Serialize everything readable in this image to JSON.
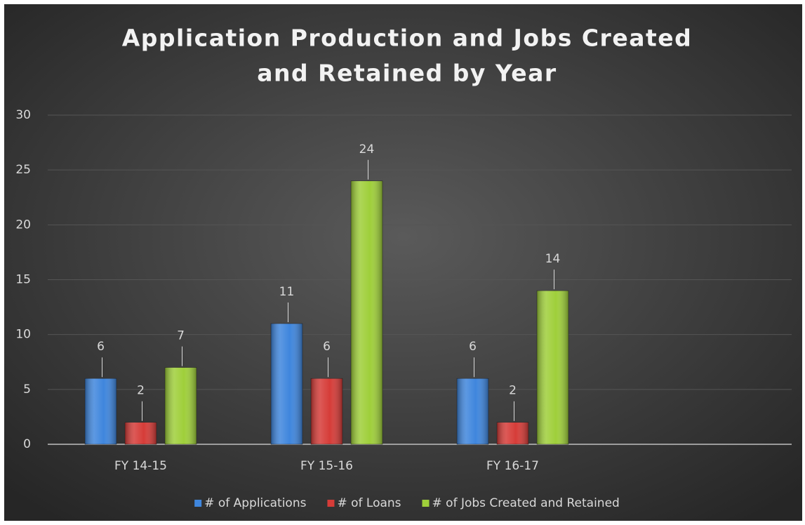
{
  "chart_data": {
    "type": "bar",
    "title": "Application Production and Jobs Created",
    "title_line2": "and Retained by Year",
    "categories": [
      "FY 14-15",
      "FY 15-16",
      "FY 16-17",
      null
    ],
    "series": [
      {
        "name": "# of Applications",
        "color": "#3f86dd",
        "values": [
          6,
          11,
          6,
          null
        ]
      },
      {
        "name": "# of Loans",
        "color": "#d63c38",
        "values": [
          2,
          6,
          2,
          null
        ]
      },
      {
        "name": "# of Jobs Created and Retained",
        "color": "#9fcf3a",
        "values": [
          7,
          24,
          14,
          null
        ]
      }
    ],
    "ylim": [
      0,
      30
    ],
    "yticks": [
      0,
      5,
      10,
      15,
      20,
      25,
      30
    ],
    "grid": true,
    "legend": "bottom"
  }
}
